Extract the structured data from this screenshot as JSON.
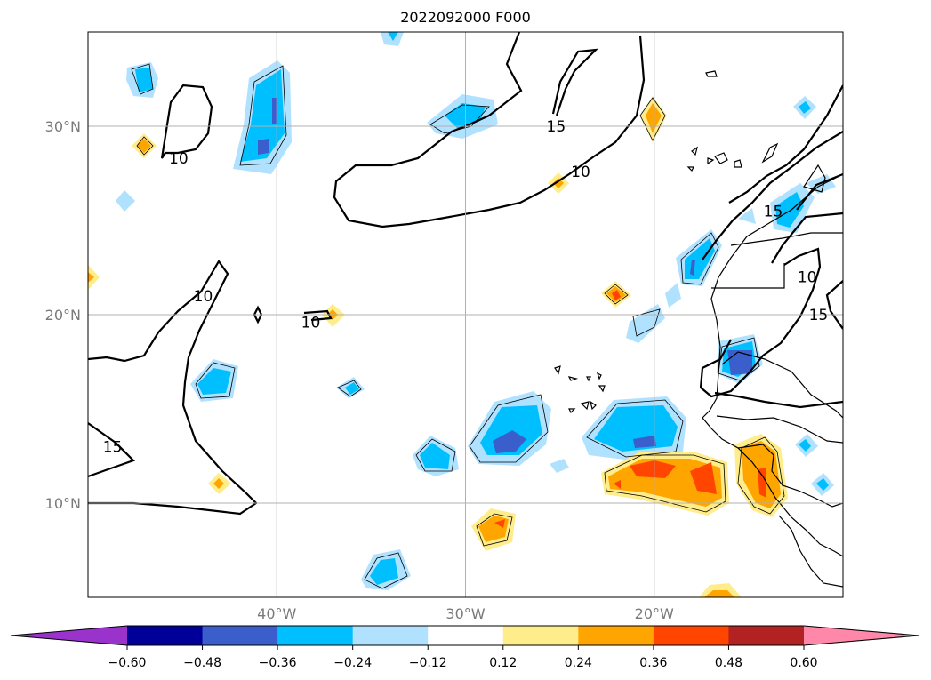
{
  "title": "2022092000 F000",
  "map": {
    "lat_range": [
      5,
      35
    ],
    "lon_range": [
      -50,
      -10
    ],
    "lat_ticks": [
      {
        "value": 10,
        "label": "10°N"
      },
      {
        "value": 20,
        "label": "20°N"
      },
      {
        "value": 30,
        "label": "30°N"
      }
    ],
    "lon_ticks": [
      {
        "value": -40,
        "label": "40°W"
      },
      {
        "value": -30,
        "label": "30°W"
      },
      {
        "value": -20,
        "label": "20°W"
      }
    ],
    "grid": true,
    "contour_labels": [
      {
        "text": "10",
        "lon": -45.2,
        "lat": 28.3
      },
      {
        "text": "10",
        "lon": -23.9,
        "lat": 27.6
      },
      {
        "text": "15",
        "lon": -25.2,
        "lat": 30.0
      },
      {
        "text": "10",
        "lon": -43.9,
        "lat": 21.0
      },
      {
        "text": "10",
        "lon": -38.2,
        "lat": 19.6
      },
      {
        "text": "15",
        "lon": -48.7,
        "lat": 13.0
      },
      {
        "text": "10",
        "lon": -11.9,
        "lat": 22.0
      },
      {
        "text": "15",
        "lon": -11.3,
        "lat": 20.0
      },
      {
        "text": "15",
        "lon": -13.7,
        "lat": 25.5
      }
    ]
  },
  "colorbar": {
    "ticks": [
      "−0.60",
      "−0.48",
      "−0.36",
      "−0.24",
      "−0.12",
      "0.12",
      "0.24",
      "0.36",
      "0.48",
      "0.60"
    ],
    "colors": [
      "#9933cc",
      "#000099",
      "#3a5fcd",
      "#00bfff",
      "#b0e2ff",
      "#ffffff",
      "#ffec8b",
      "#ffa500",
      "#ff4500",
      "#b22222",
      "#ff88aa"
    ]
  }
}
